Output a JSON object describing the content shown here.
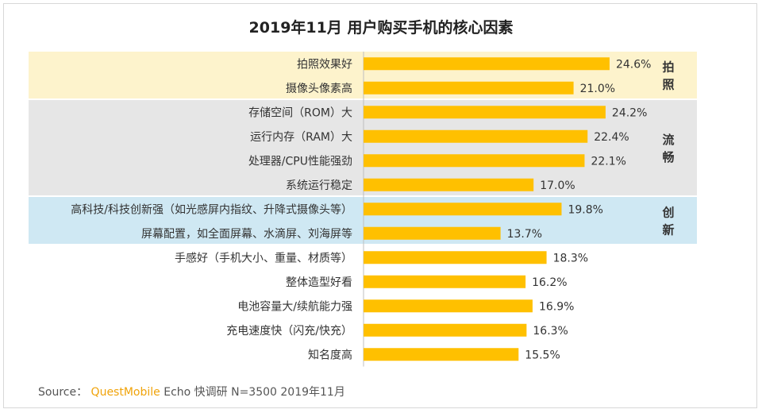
{
  "chart_data": {
    "type": "bar",
    "orientation": "horizontal",
    "title": "2019年11月 用户购买手机的核心因素",
    "categories": [
      "拍照效果好",
      "摄像头像素高",
      "存储空间（ROM）大",
      "运行内存（RAM）大",
      "处理器/CPU性能强劲",
      "系统运行稳定",
      "高科技/科技创新强（如光感屏内指纹、升降式摄像头等）",
      "屏幕配置，如全面屏幕、水滴屏、刘海屏等",
      "手感好（手机大小、重量、材质等）",
      "整体造型好看",
      "电池容量大/续航能力强",
      "充电速度快（闪充/快充）",
      "知名度高"
    ],
    "values": [
      24.6,
      21.0,
      24.2,
      22.4,
      22.1,
      17.0,
      19.8,
      13.7,
      18.3,
      16.2,
      16.9,
      16.3,
      15.5
    ],
    "value_labels": [
      "24.6%",
      "21.0%",
      "24.2%",
      "22.4%",
      "22.1%",
      "17.0%",
      "19.8%",
      "13.7%",
      "18.3%",
      "16.2%",
      "16.9%",
      "16.3%",
      "15.5%"
    ],
    "groups": [
      {
        "name": "拍照",
        "start": 0,
        "end": 1,
        "color": "#fdf3cc"
      },
      {
        "name": "流畅",
        "start": 2,
        "end": 5,
        "color": "#e6e6e6"
      },
      {
        "name": "创新",
        "start": 6,
        "end": 7,
        "color": "#cfe8f3"
      }
    ],
    "bar_color": "#ffc000",
    "xlim": [
      0,
      30
    ],
    "grid": false,
    "legend": "none"
  },
  "source": {
    "prefix": "Source：",
    "brand": "QuestMobile",
    "rest": "Echo 快调研 N=3500 2019年11月"
  }
}
